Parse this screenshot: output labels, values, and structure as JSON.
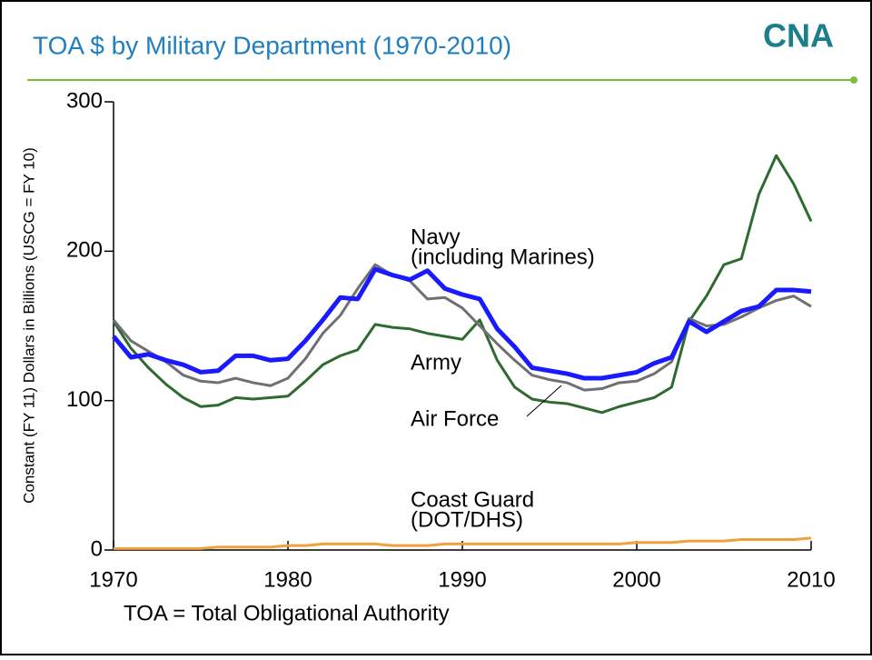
{
  "chart_data": {
    "type": "line",
    "title": "TOA $ by Military Department (1970-2010)",
    "logo": "CNA",
    "y_label": "Constant (FY 11) Dollars in Billions (USCG = FY 10)",
    "footnote": "TOA = Total Obligational Authority",
    "x": [
      1970,
      1971,
      1972,
      1973,
      1974,
      1975,
      1976,
      1977,
      1978,
      1979,
      1980,
      1981,
      1982,
      1983,
      1984,
      1985,
      1986,
      1987,
      1988,
      1989,
      1990,
      1991,
      1992,
      1993,
      1994,
      1995,
      1996,
      1997,
      1998,
      1999,
      2000,
      2001,
      2002,
      2003,
      2004,
      2005,
      2006,
      2007,
      2008,
      2009,
      2010
    ],
    "xlim": [
      1970,
      2010
    ],
    "xticks": [
      1970,
      1980,
      1990,
      2000,
      2010
    ],
    "ylim": [
      0,
      300
    ],
    "yticks": [
      0,
      100,
      200,
      300
    ],
    "series": [
      {
        "name": "Army",
        "color": "#2e6b30",
        "values": [
          153,
          135,
          122,
          111,
          102,
          96,
          97,
          102,
          101,
          102,
          103,
          113,
          124,
          130,
          134,
          151,
          149,
          148,
          145,
          143,
          141,
          154,
          127,
          109,
          101,
          99,
          98,
          95,
          92,
          96,
          99,
          102,
          109,
          153,
          170,
          191,
          195,
          238,
          264,
          245,
          220
        ]
      },
      {
        "name": "Air Force",
        "color": "#707070",
        "values": [
          154,
          140,
          133,
          126,
          117,
          113,
          112,
          115,
          112,
          110,
          115,
          128,
          145,
          157,
          175,
          191,
          184,
          180,
          168,
          169,
          162,
          150,
          138,
          127,
          117,
          114,
          112,
          107,
          108,
          112,
          113,
          118,
          126,
          155,
          150,
          151,
          156,
          162,
          167,
          170,
          163
        ]
      },
      {
        "name": "Navy",
        "sublabel": "(including Marines)",
        "color": "#1a1aff",
        "values": [
          143,
          129,
          131,
          127,
          124,
          119,
          120,
          130,
          130,
          127,
          128,
          140,
          154,
          169,
          168,
          188,
          184,
          181,
          187,
          175,
          171,
          168,
          148,
          136,
          122,
          120,
          118,
          115,
          115,
          117,
          119,
          125,
          129,
          153,
          146,
          153,
          160,
          163,
          174,
          174,
          173
        ]
      },
      {
        "name": "Coast Guard",
        "sublabel": "(DOT/DHS)",
        "color": "#f0a040",
        "values": [
          1,
          1,
          1,
          1,
          1,
          1,
          2,
          2,
          2,
          2,
          3,
          3,
          4,
          4,
          4,
          4,
          3,
          3,
          3,
          4,
          4,
          4,
          4,
          4,
          4,
          4,
          4,
          4,
          4,
          4,
          5,
          5,
          5,
          6,
          6,
          6,
          7,
          7,
          7,
          7,
          8
        ]
      }
    ]
  }
}
